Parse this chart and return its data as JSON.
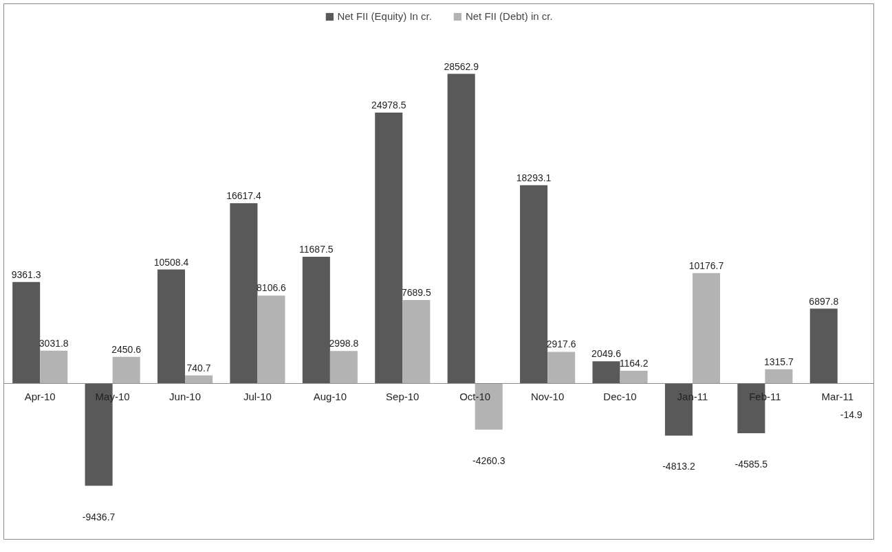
{
  "chart_data": {
    "type": "bar",
    "categories": [
      "Apr-10",
      "May-10",
      "Jun-10",
      "Jul-10",
      "Aug-10",
      "Sep-10",
      "Oct-10",
      "Nov-10",
      "Dec-10",
      "Jan-11",
      "Feb-11",
      "Mar-11"
    ],
    "series": [
      {
        "name": "Net FII (Equity) In cr.",
        "color": "#595959",
        "values": [
          9361.3,
          -9436.7,
          10508.4,
          16617.4,
          11687.5,
          24978.5,
          28562.9,
          18293.1,
          2049.6,
          -4813.2,
          -4585.5,
          6897.8
        ]
      },
      {
        "name": "Net FII (Debt) in cr.",
        "color": "#b3b3b3",
        "values": [
          3031.8,
          2450.6,
          740.7,
          8106.6,
          2998.8,
          7689.5,
          -4260.3,
          2917.6,
          1164.2,
          10176.7,
          1315.7,
          -14.9
        ]
      }
    ],
    "data_labels": true,
    "legend": "top",
    "grid": false
  }
}
